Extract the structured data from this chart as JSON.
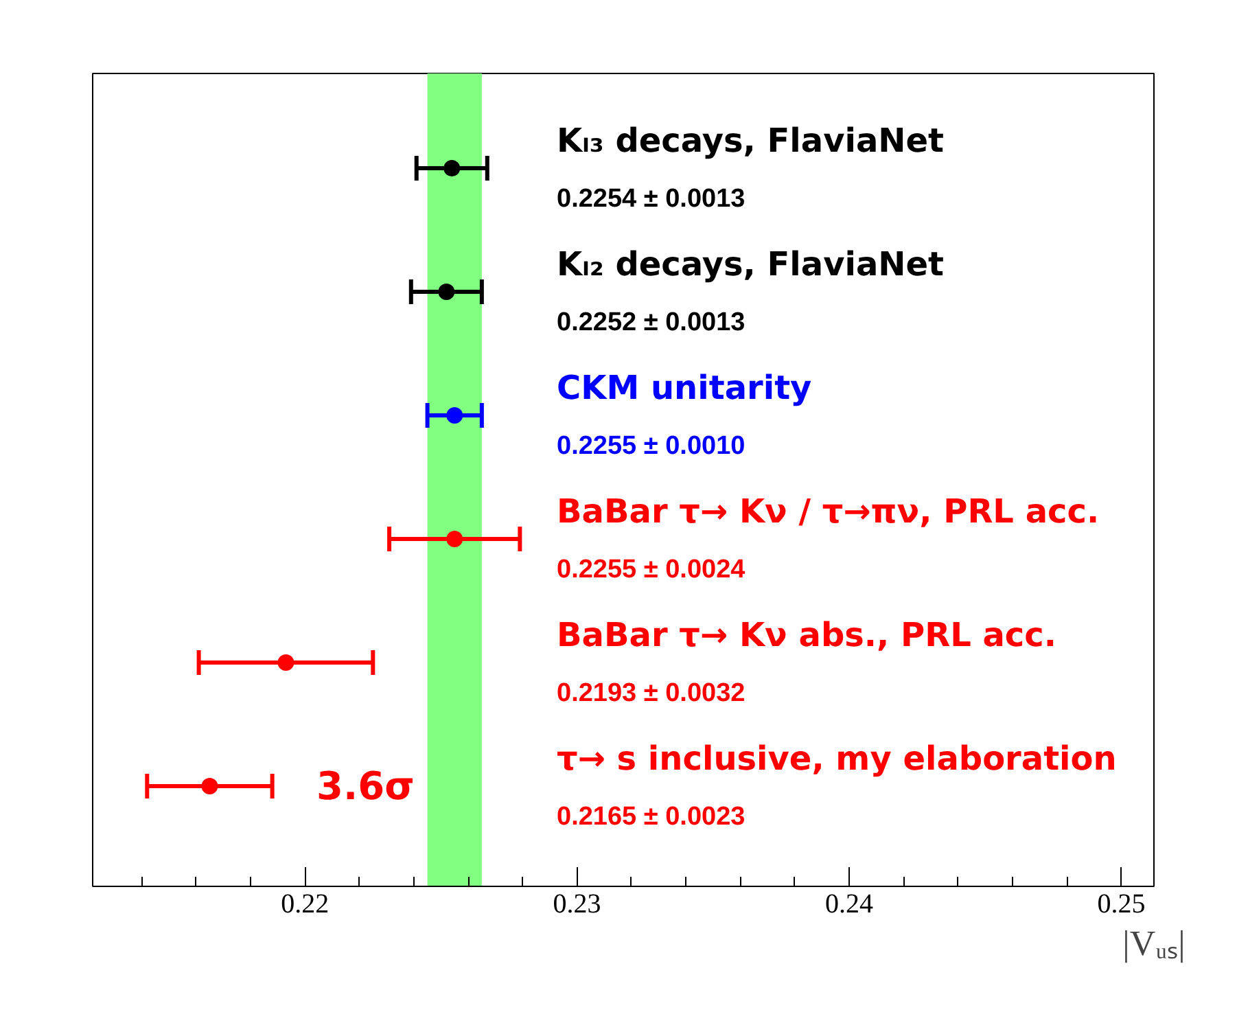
{
  "chart_data": {
    "type": "scatter",
    "orientation": "horizontal",
    "xlabel": "|Vᵤₛ|",
    "categories": [
      "Kₗ₃ decays, FlaviaNet",
      "Kₗ₂ decays, FlaviaNet",
      "CKM unitarity",
      "BaBar τ→ Kν / τ→πν, PRL acc.",
      "BaBar τ→ Kν abs., PRL acc.",
      "τ→ s inclusive, my elaboration"
    ],
    "values": [
      0.2254,
      0.2252,
      0.2255,
      0.2255,
      0.2193,
      0.2165
    ],
    "errors": [
      0.0013,
      0.0013,
      0.001,
      0.0024,
      0.0032,
      0.0023
    ],
    "colors": [
      "#000000",
      "#000000",
      "#0000ff",
      "#ff0000",
      "#ff0000",
      "#ff0000"
    ],
    "xlim": [
      0.2122,
      0.2512
    ],
    "xticks": [
      {
        "value": 0.214,
        "label": null
      },
      {
        "value": 0.216,
        "label": null
      },
      {
        "value": 0.218,
        "label": null
      },
      0.22,
      {
        "value": 0.222,
        "label": null
      },
      {
        "value": 0.224,
        "label": null
      },
      {
        "value": 0.226,
        "label": null
      },
      {
        "value": 0.228,
        "label": null
      },
      0.23,
      {
        "value": 0.232,
        "label": null
      },
      {
        "value": 0.234,
        "label": null
      },
      {
        "value": 0.236,
        "label": null
      },
      {
        "value": 0.238,
        "label": null
      },
      0.24,
      {
        "value": 0.242,
        "label": null
      },
      {
        "value": 0.244,
        "label": null
      },
      {
        "value": 0.246,
        "label": null
      },
      {
        "value": 0.248,
        "label": null
      },
      0.25
    ],
    "bands": [
      {
        "axis": "x",
        "from": 0.2245,
        "to": 0.2265,
        "color": "#80ff80"
      }
    ],
    "annotations": [
      "0.2254 ± 0.0013",
      "0.2252 ± 0.0013",
      "0.2255 ± 0.0010",
      "0.2255 ± 0.0024",
      "0.2193 ± 0.0032",
      "0.2165 ± 0.0023",
      "3.6σ"
    ],
    "marker": "circle",
    "tick_labels": "x",
    "grid": false
  }
}
